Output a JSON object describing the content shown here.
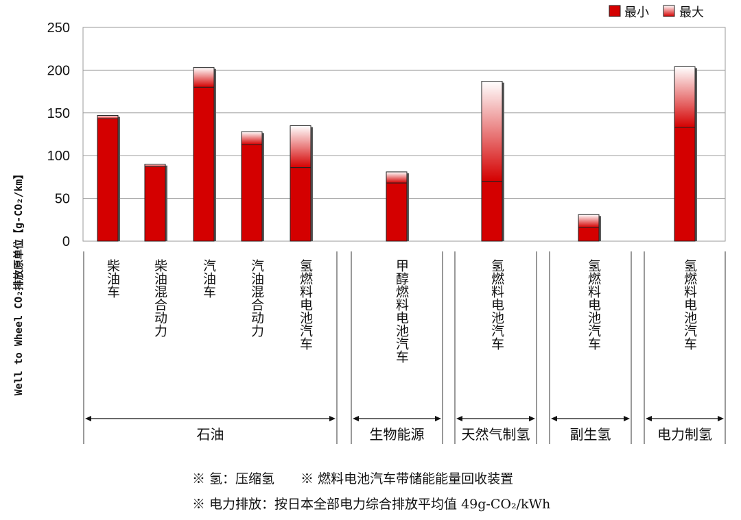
{
  "chart_data": {
    "type": "bar",
    "title": "",
    "ylabel": "Well to Wheel CO₂排放原单位【g-CO₂/km】",
    "ylim": [
      0,
      250
    ],
    "yticks": [
      "0",
      "50",
      "100",
      "150",
      "200",
      "250"
    ],
    "grid": true,
    "legend_position": "top-right",
    "categories": [
      "柴油车",
      "柴油混合动力",
      "汽油车",
      "汽油混合动力",
      "氢燃料电池汽车",
      "甲醇燃料电池汽车",
      "氢燃料电池汽车",
      "氢燃料电池汽车",
      "氢燃料电池汽车"
    ],
    "series": [
      {
        "name": "最小",
        "color": "#d40000",
        "values": [
          143,
          87,
          180,
          113,
          86,
          68,
          70,
          16,
          133
        ]
      },
      {
        "name": "最大",
        "color": "#ffffff",
        "values": [
          147,
          90,
          203,
          128,
          135,
          81,
          187,
          31,
          204
        ]
      }
    ],
    "groups": [
      {
        "label": "石油",
        "from": 0,
        "to": 4
      },
      {
        "label": "生物能源",
        "from": 5,
        "to": 5
      },
      {
        "label": "天然气制氢",
        "from": 6,
        "to": 6
      },
      {
        "label": "副生氢",
        "from": 7,
        "to": 7
      },
      {
        "label": "电力制氢",
        "from": 8,
        "to": 8
      }
    ]
  },
  "notes": {
    "line1": "※ 氢：压缩氢　　※ 燃料电池汽车带储能能量回收装置",
    "line2": "※ 电力排放：按日本全部电力综合排放平均值 49g-CO₂/kWh"
  }
}
